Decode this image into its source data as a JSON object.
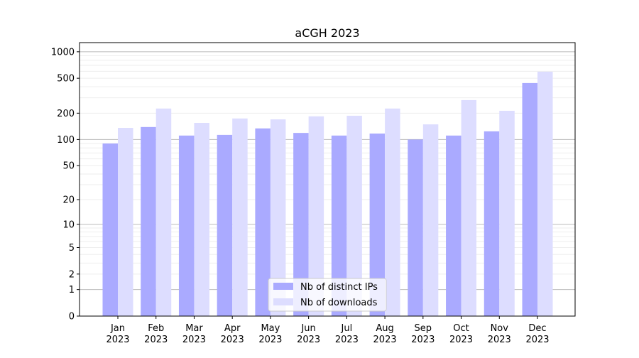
{
  "chart_data": {
    "type": "bar",
    "title": "aCGH 2023",
    "xlabel": "",
    "ylabel": "",
    "yscale": "log10(1+y)",
    "ylim": [
      0,
      1270
    ],
    "yticks": [
      0,
      1,
      2,
      5,
      10,
      20,
      50,
      100,
      200,
      500,
      1000
    ],
    "grid": true,
    "legend_position": "lower-center",
    "categories": [
      [
        "Jan",
        "2023"
      ],
      [
        "Feb",
        "2023"
      ],
      [
        "Mar",
        "2023"
      ],
      [
        "Apr",
        "2023"
      ],
      [
        "May",
        "2023"
      ],
      [
        "Jun",
        "2023"
      ],
      [
        "Jul",
        "2023"
      ],
      [
        "Aug",
        "2023"
      ],
      [
        "Sep",
        "2023"
      ],
      [
        "Oct",
        "2023"
      ],
      [
        "Nov",
        "2023"
      ],
      [
        "Dec",
        "2023"
      ]
    ],
    "series": [
      {
        "name": "Nb of distinct IPs",
        "color": "#aaaaff",
        "values": [
          90,
          139,
          111,
          113,
          134,
          119,
          111,
          117,
          100,
          111,
          124,
          441
        ]
      },
      {
        "name": "Nb of downloads",
        "color": "#ddddff",
        "values": [
          136,
          226,
          155,
          174,
          170,
          184,
          187,
          226,
          149,
          282,
          213,
          594
        ]
      }
    ]
  }
}
